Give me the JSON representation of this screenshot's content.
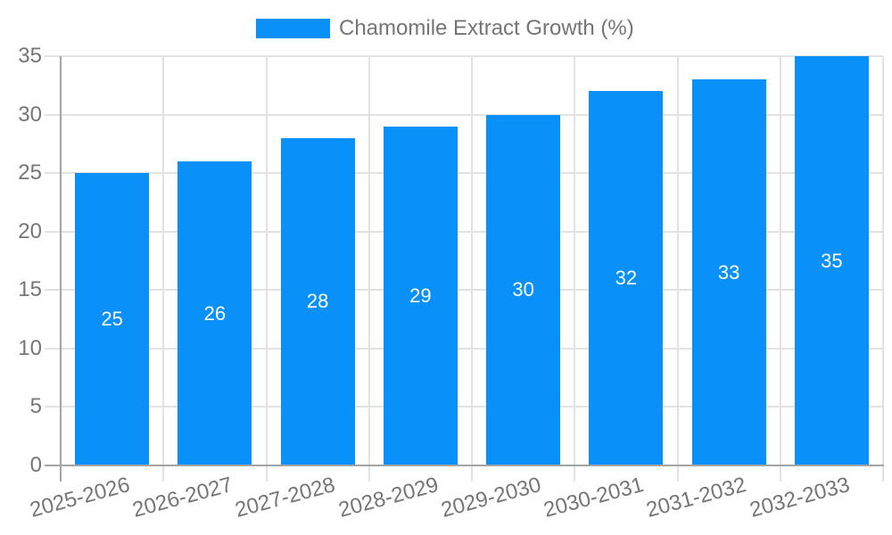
{
  "legend": {
    "label": "Chamomile Extract Growth (%)"
  },
  "colors": {
    "bar": "#0991f9",
    "grid": "#e2e2e2",
    "axis": "#a4a4a4",
    "axis_text": "#757575",
    "value_label": "#ffffff",
    "background": "#ffffff"
  },
  "chart_data": {
    "type": "bar",
    "title": "",
    "xlabel": "",
    "ylabel": "",
    "legend_position": "top-center",
    "grid": true,
    "categories": [
      "2025-2026",
      "2026-2027",
      "2027-2028",
      "2028-2029",
      "2029-2030",
      "2030-2031",
      "2031-2032",
      "2032-2033"
    ],
    "series": [
      {
        "name": "Chamomile Extract Growth (%)",
        "values": [
          25,
          26,
          28,
          29,
          30,
          32,
          33,
          35
        ]
      }
    ],
    "bar_value_labels": [
      "25",
      "26",
      "28",
      "29",
      "30",
      "32",
      "33",
      "35"
    ],
    "ylim": [
      0,
      35
    ],
    "yticks": [
      0,
      5,
      10,
      15,
      20,
      25,
      30,
      35
    ],
    "x_label_rotation_deg": -15
  }
}
